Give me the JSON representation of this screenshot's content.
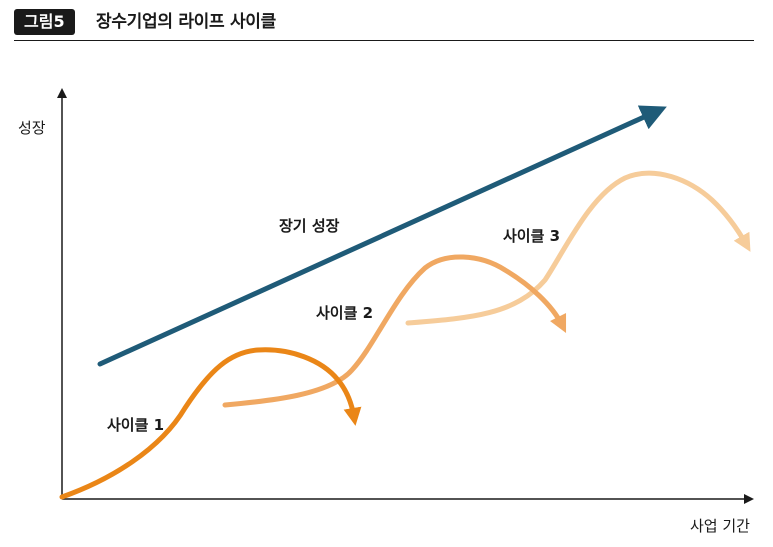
{
  "header": {
    "figure_number": "그림5",
    "title": "장수기업의 라이프 사이클"
  },
  "axes": {
    "y_label": "성장",
    "x_label": "사업 기간"
  },
  "labels": {
    "long_term_growth": "장기 성장",
    "cycle1": "사이클 1",
    "cycle2": "사이클 2",
    "cycle3": "사이클 3"
  },
  "colors": {
    "growth_arrow": "#1f5b78",
    "cycle1": "#ea8617",
    "cycle2": "#f0a862",
    "cycle3": "#f6cc9a",
    "axis": "#1a1a1a"
  }
}
